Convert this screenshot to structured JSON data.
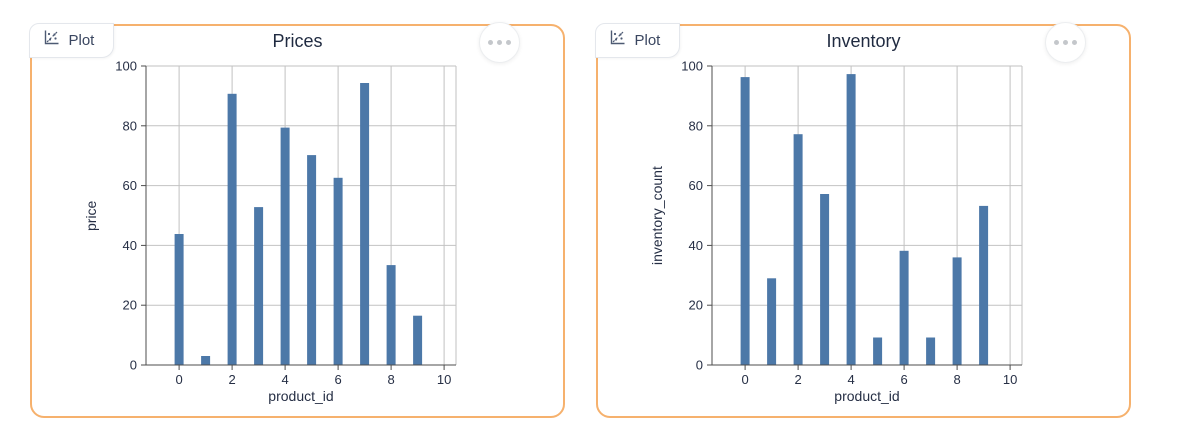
{
  "cards": [
    {
      "tab_label": "Plot"
    },
    {
      "tab_label": "Plot"
    }
  ],
  "colors": {
    "card_border": "#f6b16d",
    "bar": "#4c78a8",
    "grid": "#c2c2c2",
    "axis": "#4d4d4d",
    "label_text": "#262f45",
    "title_text": "#1f2a40",
    "dot": "#c4c7cb"
  },
  "chart_data": [
    {
      "type": "bar",
      "title": "Prices",
      "xlabel": "product_id",
      "ylabel": "price",
      "categories": [
        0,
        1,
        2,
        3,
        4,
        5,
        6,
        7,
        8,
        9
      ],
      "values": [
        43.8,
        3.0,
        90.7,
        52.8,
        79.4,
        70.2,
        62.6,
        94.3,
        33.4,
        16.5
      ],
      "xlim": [
        -1.25,
        10.45
      ],
      "ylim": [
        0,
        100
      ],
      "x_ticks": [
        0,
        2,
        4,
        6,
        8,
        10
      ],
      "y_ticks": [
        0,
        20,
        40,
        60,
        80,
        100
      ],
      "grid": true,
      "legend": false,
      "bar_color": "#4c78a8"
    },
    {
      "type": "bar",
      "title": "Inventory",
      "xlabel": "product_id",
      "ylabel": "inventory_count",
      "categories": [
        0,
        1,
        2,
        3,
        4,
        5,
        6,
        7,
        8,
        9
      ],
      "values": [
        96.3,
        29.0,
        77.2,
        57.2,
        97.3,
        9.2,
        38.2,
        9.2,
        36.0,
        53.2
      ],
      "xlim": [
        -1.25,
        10.45
      ],
      "ylim": [
        0,
        100
      ],
      "x_ticks": [
        0,
        2,
        4,
        6,
        8,
        10
      ],
      "y_ticks": [
        0,
        20,
        40,
        60,
        80,
        100
      ],
      "grid": true,
      "legend": false,
      "bar_color": "#4c78a8"
    }
  ]
}
